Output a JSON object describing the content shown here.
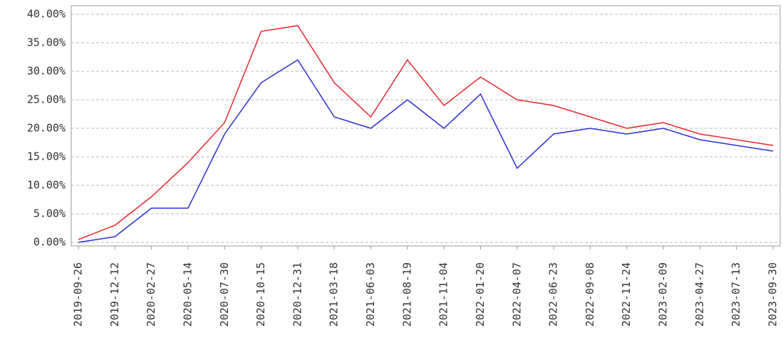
{
  "chart_data": {
    "type": "line",
    "categories": [
      "2019-09-26",
      "2019-12-12",
      "2020-02-27",
      "2020-05-14",
      "2020-07-30",
      "2020-10-15",
      "2020-12-31",
      "2021-03-18",
      "2021-06-03",
      "2021-08-19",
      "2021-11-04",
      "2022-01-20",
      "2022-04-07",
      "2022-06-23",
      "2022-09-08",
      "2022-11-24",
      "2023-02-09",
      "2023-04-27",
      "2023-07-13",
      "2023-09-30"
    ],
    "series": [
      {
        "color": "#e8262b",
        "values": [
          0.5,
          3,
          8,
          14,
          21,
          37,
          38,
          28,
          22,
          32,
          24,
          29,
          25,
          24,
          22,
          20,
          21,
          19,
          18,
          17
        ]
      },
      {
        "color": "#2b2fd6",
        "values": [
          0,
          1,
          6,
          6,
          19,
          28,
          32,
          22,
          20,
          25,
          20,
          26,
          13,
          19,
          20,
          19,
          20,
          18,
          17,
          16
        ]
      }
    ],
    "ylim": [
      0,
      40
    ],
    "yticks": [
      {
        "value": 0,
        "label": "0.00%"
      },
      {
        "value": 5,
        "label": "5.00%"
      },
      {
        "value": 10,
        "label": "10.00%"
      },
      {
        "value": 15,
        "label": "15.00%"
      },
      {
        "value": 20,
        "label": "20.00%"
      },
      {
        "value": 25,
        "label": "25.00%"
      },
      {
        "value": 30,
        "label": "30.00%"
      },
      {
        "value": 35,
        "label": "35.00%"
      },
      {
        "value": 40,
        "label": "40.00%"
      }
    ],
    "grid": true
  }
}
